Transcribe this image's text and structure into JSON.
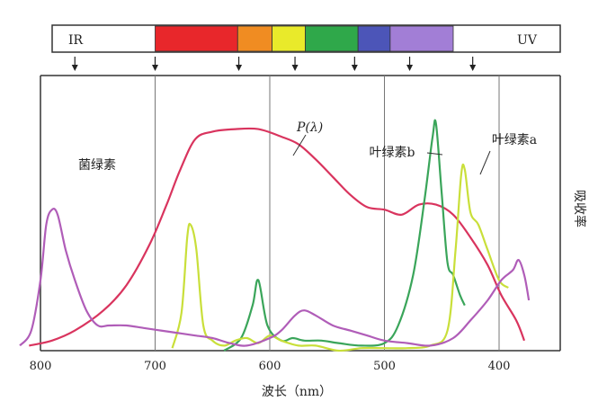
{
  "chart_data": {
    "type": "line",
    "x_axis": {
      "label": "波长（nm）",
      "ticks": [
        800,
        700,
        600,
        500,
        400
      ],
      "range": [
        820,
        370
      ],
      "reversed": true
    },
    "y_axis": {
      "label": "吸收率",
      "range": [
        0,
        1
      ],
      "position": "right"
    },
    "grid": {
      "vertical_at": [
        700,
        600,
        500,
        400
      ]
    },
    "spectrum_bar": {
      "ends": {
        "IR": "IR",
        "UV": "UV"
      },
      "colors": [
        {
          "from": 700,
          "to": 628,
          "color": "#e8272b"
        },
        {
          "from": 628,
          "to": 598,
          "color": "#f08c22"
        },
        {
          "from": 598,
          "to": 569,
          "color": "#e9ea2a"
        },
        {
          "from": 569,
          "to": 523,
          "color": "#2fa84a"
        },
        {
          "from": 523,
          "to": 495,
          "color": "#4c55b8"
        },
        {
          "from": 495,
          "to": 440,
          "color": "#a27ed6"
        }
      ],
      "arrows_at": [
        770,
        700,
        627,
        578,
        526,
        478,
        423
      ]
    },
    "series": [
      {
        "name": "P(λ)",
        "color": "#d9345e",
        "points": [
          [
            810,
            0.02
          ],
          [
            790,
            0.04
          ],
          [
            770,
            0.08
          ],
          [
            745,
            0.16
          ],
          [
            725,
            0.26
          ],
          [
            705,
            0.42
          ],
          [
            690,
            0.58
          ],
          [
            678,
            0.72
          ],
          [
            665,
            0.84
          ],
          [
            650,
            0.87
          ],
          [
            630,
            0.88
          ],
          [
            610,
            0.88
          ],
          [
            590,
            0.85
          ],
          [
            575,
            0.82
          ],
          [
            560,
            0.76
          ],
          [
            545,
            0.69
          ],
          [
            530,
            0.62
          ],
          [
            515,
            0.57
          ],
          [
            500,
            0.56
          ],
          [
            485,
            0.54
          ],
          [
            470,
            0.58
          ],
          [
            455,
            0.58
          ],
          [
            440,
            0.54
          ],
          [
            425,
            0.45
          ],
          [
            410,
            0.34
          ],
          [
            398,
            0.22
          ],
          [
            385,
            0.12
          ],
          [
            378,
            0.04
          ]
        ]
      },
      {
        "name": "叶绿素b",
        "color": "#3aa55a",
        "points": [
          [
            640,
            0.0
          ],
          [
            625,
            0.05
          ],
          [
            615,
            0.18
          ],
          [
            610,
            0.28
          ],
          [
            602,
            0.1
          ],
          [
            590,
            0.04
          ],
          [
            580,
            0.05
          ],
          [
            570,
            0.04
          ],
          [
            555,
            0.04
          ],
          [
            540,
            0.03
          ],
          [
            520,
            0.02
          ],
          [
            500,
            0.03
          ],
          [
            488,
            0.1
          ],
          [
            475,
            0.3
          ],
          [
            465,
            0.6
          ],
          [
            458,
            0.85
          ],
          [
            455,
            0.9
          ],
          [
            450,
            0.62
          ],
          [
            445,
            0.35
          ],
          [
            440,
            0.3
          ],
          [
            434,
            0.22
          ],
          [
            430,
            0.18
          ]
        ]
      },
      {
        "name": "叶绿素a",
        "color": "#c9df3a",
        "points": [
          [
            685,
            0.01
          ],
          [
            677,
            0.15
          ],
          [
            672,
            0.45
          ],
          [
            669,
            0.5
          ],
          [
            664,
            0.4
          ],
          [
            658,
            0.1
          ],
          [
            650,
            0.04
          ],
          [
            640,
            0.02
          ],
          [
            630,
            0.04
          ],
          [
            620,
            0.05
          ],
          [
            610,
            0.03
          ],
          [
            600,
            0.06
          ],
          [
            590,
            0.04
          ],
          [
            575,
            0.02
          ],
          [
            560,
            0.02
          ],
          [
            540,
            0.0
          ],
          [
            520,
            0.01
          ],
          [
            500,
            0.01
          ],
          [
            480,
            0.01
          ],
          [
            460,
            0.02
          ],
          [
            445,
            0.08
          ],
          [
            438,
            0.4
          ],
          [
            433,
            0.7
          ],
          [
            430,
            0.72
          ],
          [
            425,
            0.55
          ],
          [
            418,
            0.5
          ],
          [
            410,
            0.4
          ],
          [
            400,
            0.28
          ],
          [
            392,
            0.25
          ]
        ]
      },
      {
        "name": "菌绿素",
        "color": "#b05db8",
        "points": [
          [
            818,
            0.02
          ],
          [
            808,
            0.08
          ],
          [
            800,
            0.28
          ],
          [
            795,
            0.5
          ],
          [
            790,
            0.56
          ],
          [
            785,
            0.54
          ],
          [
            778,
            0.4
          ],
          [
            770,
            0.28
          ],
          [
            760,
            0.16
          ],
          [
            750,
            0.1
          ],
          [
            740,
            0.1
          ],
          [
            725,
            0.1
          ],
          [
            710,
            0.09
          ],
          [
            695,
            0.08
          ],
          [
            680,
            0.07
          ],
          [
            665,
            0.06
          ],
          [
            650,
            0.05
          ],
          [
            635,
            0.03
          ],
          [
            620,
            0.02
          ],
          [
            600,
            0.05
          ],
          [
            590,
            0.08
          ],
          [
            578,
            0.14
          ],
          [
            570,
            0.16
          ],
          [
            560,
            0.14
          ],
          [
            545,
            0.1
          ],
          [
            530,
            0.08
          ],
          [
            515,
            0.06
          ],
          [
            500,
            0.04
          ],
          [
            480,
            0.03
          ],
          [
            460,
            0.02
          ],
          [
            440,
            0.05
          ],
          [
            425,
            0.12
          ],
          [
            410,
            0.2
          ],
          [
            398,
            0.28
          ],
          [
            388,
            0.32
          ],
          [
            383,
            0.36
          ],
          [
            378,
            0.3
          ],
          [
            374,
            0.2
          ]
        ]
      }
    ],
    "annotations": {
      "p_lambda": "P(λ)",
      "chl_b": "叶绿素b",
      "chl_a": "叶绿素a",
      "bchl": "菌绿素"
    }
  }
}
